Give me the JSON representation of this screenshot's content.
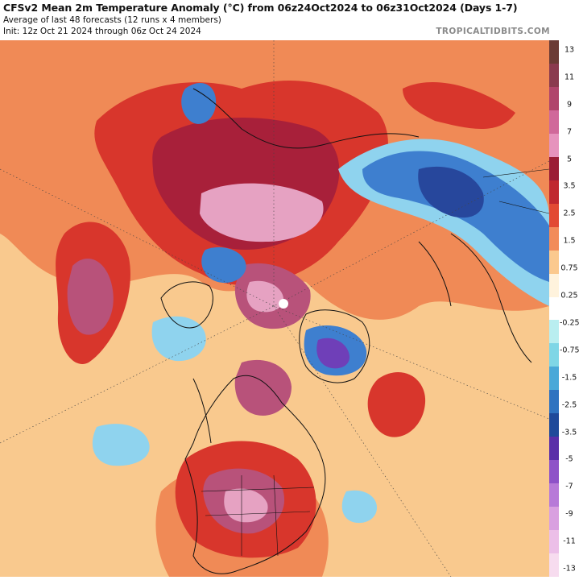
{
  "header": {
    "title": "CFSv2 Mean 2m Temperature Anomaly (°C) from 06z24Oct2024 to 06z31Oct2024 (Days 1-7)",
    "subtitle_line1": "Average of last 48 forecasts (12 runs x 4 members)",
    "subtitle_line2": "Init: 12z Oct 21 2024 through 06z Oct 24 2024",
    "brand": "TROPICALTIDBITS.COM"
  },
  "colorbar": {
    "labels": [
      "13",
      "11",
      "9",
      "7",
      "5",
      "3.5",
      "2.5",
      "1.5",
      "0.75",
      "0.25",
      "-0.25",
      "-0.75",
      "-1.5",
      "-2.5",
      "-3.5",
      "-5",
      "-7",
      "-9",
      "-11",
      "-13"
    ],
    "colors": [
      "#6b3b35",
      "#8a3a4e",
      "#b0456b",
      "#d0699a",
      "#e693bd",
      "#9b1d35",
      "#c0282f",
      "#e24a33",
      "#f28c5a",
      "#fbc98e",
      "#fff3dd",
      "#ffffff",
      "#b9eef0",
      "#7fd6e6",
      "#4aa8d8",
      "#2f73c0",
      "#1f4a9a",
      "#5a2fa8",
      "#8e52c8",
      "#b77ad8",
      "#d9a0e0",
      "#ecbfe8",
      "#f7dcef"
    ]
  },
  "map": {
    "pole_marker": "north-pole-dot",
    "colors": {
      "warm_light": "#f9c98e",
      "warm_orange": "#f08a56",
      "warm_red": "#d8362c",
      "warm_dark": "#a8203a",
      "warm_magenta": "#b8527a",
      "warm_pink": "#e6a2c2",
      "cold_light": "#8fd3ee",
      "cold_mid": "#3e7fcf",
      "cold_dark": "#27479c",
      "cold_purple": "#6f3fb8",
      "coast": "#111111"
    }
  }
}
